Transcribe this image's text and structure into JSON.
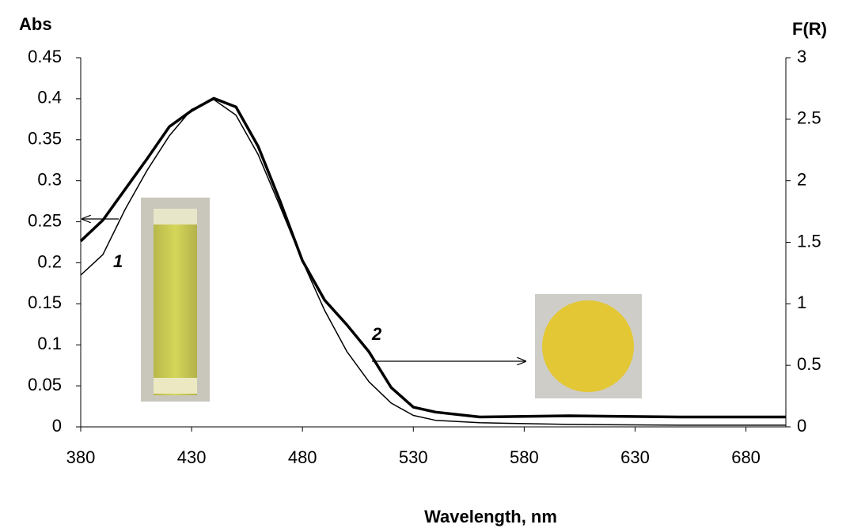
{
  "chart_data": {
    "type": "line",
    "x_label": "Wavelength, nm",
    "y_label": "Abs",
    "y2_label": "F(R)",
    "x": [
      380,
      390,
      400,
      410,
      420,
      430,
      440,
      450,
      460,
      470,
      480,
      490,
      500,
      510,
      520,
      530,
      540,
      560,
      600,
      650,
      698
    ],
    "series": [
      {
        "name": "1",
        "color": "#000000",
        "width": 1.5,
        "values": [
          0.185,
          0.21,
          0.265,
          0.313,
          0.355,
          0.387,
          0.399,
          0.38,
          0.332,
          0.268,
          0.202,
          0.142,
          0.092,
          0.055,
          0.029,
          0.014,
          0.008,
          0.005,
          0.003,
          0.002,
          0.002
        ]
      },
      {
        "name": "2",
        "color": "#000000",
        "width": 3.5,
        "axis": "y2",
        "values": [
          1.51,
          1.68,
          1.93,
          2.18,
          2.44,
          2.57,
          2.67,
          2.6,
          2.28,
          1.83,
          1.35,
          1.03,
          0.83,
          0.61,
          0.32,
          0.16,
          0.12,
          0.08,
          0.09,
          0.08,
          0.08
        ]
      }
    ],
    "xlim": [
      380,
      698
    ],
    "xticks": [
      380,
      430,
      480,
      530,
      580,
      630,
      680
    ],
    "ylim": [
      0,
      0.45
    ],
    "yticks": [
      0,
      0.05,
      0.1,
      0.15,
      0.2,
      0.25,
      0.3,
      0.35,
      0.4,
      0.45
    ],
    "y2lim": [
      0,
      3
    ],
    "y2ticks": [
      0,
      0.5,
      1,
      1.5,
      2,
      2.5,
      3
    ],
    "grid": false
  }
}
